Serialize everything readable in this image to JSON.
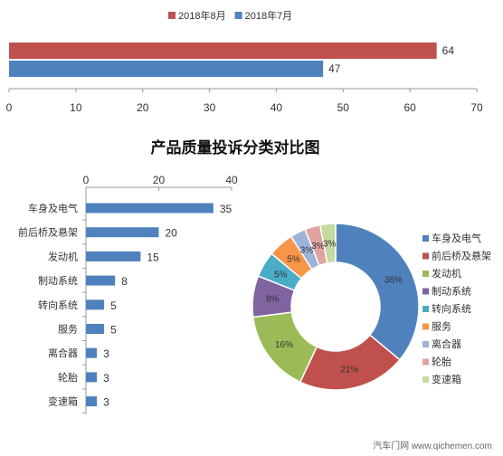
{
  "page_title": "产品质量投诉分类对比图",
  "watermark": "汽车门网 www.qichemen.com",
  "chart_data": [
    {
      "type": "bar",
      "orientation": "horizontal",
      "series": [
        {
          "name": "2018年8月",
          "values": [
            64
          ],
          "color": "#c0504d"
        },
        {
          "name": "2018年7月",
          "values": [
            47
          ],
          "color": "#4f81bd"
        }
      ],
      "xlim": [
        0,
        70
      ],
      "xticks": [
        0,
        10,
        20,
        30,
        40,
        50,
        60,
        70
      ],
      "grid": false,
      "legend": "top"
    },
    {
      "type": "bar",
      "orientation": "horizontal",
      "title": "产品质量投诉分类对比图",
      "categories": [
        "车身及电气",
        "前后桥及悬架",
        "发动机",
        "制动系统",
        "转向系统",
        "服务",
        "离合器",
        "轮胎",
        "变速箱"
      ],
      "values": [
        35,
        20,
        15,
        8,
        5,
        5,
        3,
        3,
        3
      ],
      "xlim": [
        0,
        40
      ],
      "xticks": [
        0,
        20,
        40
      ],
      "xaxis_position": "top",
      "color": "#4f81bd",
      "grid": false
    },
    {
      "type": "pie",
      "donut": true,
      "categories": [
        "车身及电气",
        "前后桥及悬架",
        "发动机",
        "制动系统",
        "转向系统",
        "服务",
        "离合器",
        "轮胎",
        "变速箱"
      ],
      "values": [
        36,
        21,
        16,
        8,
        5,
        5,
        3,
        3,
        3
      ],
      "labels": [
        "36%",
        "21%",
        "16%",
        "8%",
        "5%",
        "5%",
        "3%",
        "3%",
        "3%"
      ],
      "colors": [
        "#4f81bd",
        "#c0504d",
        "#9bbb59",
        "#8064a2",
        "#4bacc6",
        "#f79646",
        "#9eb3da",
        "#e0a3a2",
        "#c6d9a0"
      ],
      "legend": "right"
    }
  ]
}
